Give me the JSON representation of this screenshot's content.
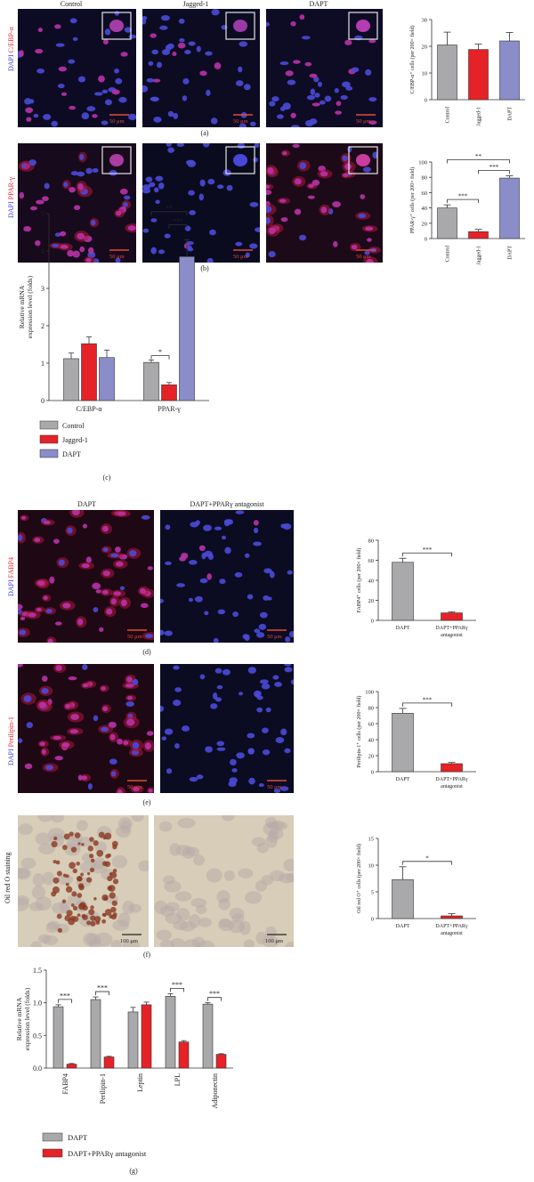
{
  "colors": {
    "control": "#a9a9ab",
    "jagged": "#e52227",
    "dapt": "#8a8dc8",
    "antagonist": "#e52227",
    "dapi": "#3b3bd9",
    "red": "#e3243a",
    "scalebar": "#e24a3a"
  },
  "panel_a": {
    "column_labels": [
      "Control",
      "Jagged-1",
      "DAPT"
    ],
    "stain_label_blue": "DAPI",
    "stain_label_red": "C/EBP-α",
    "scale_bar": "50 μm",
    "letter": "(a)"
  },
  "panel_b": {
    "stain_label_blue": "DAPI",
    "stain_label_red": "PPAR-γ",
    "scale_bar": "50 μm",
    "letter": "(b)"
  },
  "panel_c": {
    "letter": "(c)",
    "legend": [
      "Control",
      "Jagged-1",
      "DAPT"
    ]
  },
  "panel_d": {
    "column_labels": [
      "DAPT",
      "DAPT+PPARγ antagonist"
    ],
    "stain_label_blue": "DAPI",
    "stain_label_red": "FABP4",
    "scale_bar": "50 μm",
    "letter": "(d)"
  },
  "panel_e": {
    "stain_label_blue": "DAPI",
    "stain_label_red": "Perilipin-1",
    "scale_bar": "50 μm",
    "letter": "(e)"
  },
  "panel_f": {
    "side_label": "Oil red O staining",
    "scale_bar": "100 μm",
    "letter": "(f)"
  },
  "panel_g": {
    "letter": "(g)",
    "legend": [
      "DAPT",
      "DAPT+PPARγ antagonist"
    ]
  },
  "chart_data": [
    {
      "id": "a",
      "type": "bar",
      "categories": [
        "Control",
        "Jagged-1",
        "DAPT"
      ],
      "values": [
        20.5,
        18.8,
        22.0
      ],
      "errors": [
        4.8,
        2.0,
        3.2
      ],
      "ylabel": "C/EBP-α⁺ cells (per 200× field)",
      "ylim": [
        0,
        30
      ],
      "yticks": [
        "0",
        "10",
        "20",
        "30"
      ],
      "significance": []
    },
    {
      "id": "b",
      "type": "bar",
      "categories": [
        "Control",
        "Jagged-1",
        "DAPT"
      ],
      "values": [
        40,
        9,
        79
      ],
      "errors": [
        4,
        3,
        3
      ],
      "ylabel": "PPAR-γ⁺ cells (per 200× field)",
      "ylim": [
        0,
        100
      ],
      "yticks": [
        "0",
        "20",
        "40",
        "60",
        "80",
        "100"
      ],
      "significance": [
        {
          "from": 0,
          "to": 1,
          "label": "***"
        },
        {
          "from": 1,
          "to": 2,
          "label": "***"
        },
        {
          "from": 0,
          "to": 2,
          "label": "**"
        }
      ]
    },
    {
      "id": "c",
      "type": "bar",
      "categories": [
        "C/EBP-α",
        "PPAR-γ"
      ],
      "series": [
        {
          "name": "Control",
          "values": [
            1.12,
            1.02
          ],
          "errors": [
            0.15,
            0.06
          ]
        },
        {
          "name": "Jagged-1",
          "values": [
            1.52,
            0.42
          ],
          "errors": [
            0.18,
            0.06
          ]
        },
        {
          "name": "DAPT",
          "values": [
            1.15,
            3.85
          ],
          "errors": [
            0.2,
            0.45
          ]
        }
      ],
      "ylabel": "Relative mRNA expression level (folds)",
      "ylim": [
        0,
        5
      ],
      "yticks": [
        "0",
        "1",
        "2",
        "3",
        "4",
        "5"
      ],
      "significance": [
        {
          "group": 1,
          "from": 0,
          "to": 1,
          "label": "*"
        },
        {
          "group": 1,
          "from": 1,
          "to": 2,
          "label": "***"
        },
        {
          "group": 1,
          "from": 0,
          "to": 2,
          "label": "**"
        }
      ]
    },
    {
      "id": "d",
      "type": "bar",
      "categories": [
        "DAPT",
        "DAPT+PPARγ antagonist"
      ],
      "values": [
        58,
        7.5
      ],
      "errors": [
        4,
        1
      ],
      "ylabel": "FABP4⁺ cells (per 200× field)",
      "ylim": [
        0,
        80
      ],
      "yticks": [
        "0",
        "20",
        "40",
        "60",
        "80"
      ],
      "significance": [
        {
          "from": 0,
          "to": 1,
          "label": "***"
        }
      ]
    },
    {
      "id": "e",
      "type": "bar",
      "categories": [
        "DAPT",
        "DAPT+PPARγ antagonist"
      ],
      "values": [
        73,
        10
      ],
      "errors": [
        6,
        1.5
      ],
      "ylabel": "Perilipin-1⁺ cells (per 200× field)",
      "ylim": [
        0,
        100
      ],
      "yticks": [
        "0",
        "20",
        "40",
        "60",
        "80",
        "100"
      ],
      "significance": [
        {
          "from": 0,
          "to": 1,
          "label": "***"
        }
      ]
    },
    {
      "id": "f",
      "type": "bar",
      "categories": [
        "DAPT",
        "DAPT+PPARγ antagonist"
      ],
      "values": [
        7.3,
        0.5
      ],
      "errors": [
        2.4,
        0.4
      ],
      "ylabel": "Oil red O⁺ cells (per 200× field)",
      "ylim": [
        0,
        15
      ],
      "yticks": [
        "0",
        "5",
        "10",
        "15"
      ],
      "significance": [
        {
          "from": 0,
          "to": 1,
          "label": "*"
        }
      ]
    },
    {
      "id": "g",
      "type": "bar",
      "categories": [
        "FABP4",
        "Perilipin-1",
        "Leptin",
        "LPL",
        "Adiponectin"
      ],
      "series": [
        {
          "name": "DAPT",
          "values": [
            0.94,
            1.05,
            0.86,
            1.1,
            0.98
          ],
          "errors": [
            0.03,
            0.04,
            0.07,
            0.04,
            0.02
          ]
        },
        {
          "name": "DAPT+PPARγ antagonist",
          "values": [
            0.06,
            0.17,
            0.97,
            0.4,
            0.21
          ],
          "errors": [
            0.01,
            0.01,
            0.04,
            0.02,
            0.01
          ]
        }
      ],
      "ylabel": "Relative mRNA expression level (folds)",
      "ylim": [
        0,
        1.5
      ],
      "yticks": [
        "0.0",
        "0.5",
        "1.0",
        "1.5"
      ],
      "significance": [
        {
          "group": 0,
          "label": "***"
        },
        {
          "group": 1,
          "label": "***"
        },
        {
          "group": 3,
          "label": "***"
        },
        {
          "group": 4,
          "label": "***"
        }
      ]
    }
  ]
}
